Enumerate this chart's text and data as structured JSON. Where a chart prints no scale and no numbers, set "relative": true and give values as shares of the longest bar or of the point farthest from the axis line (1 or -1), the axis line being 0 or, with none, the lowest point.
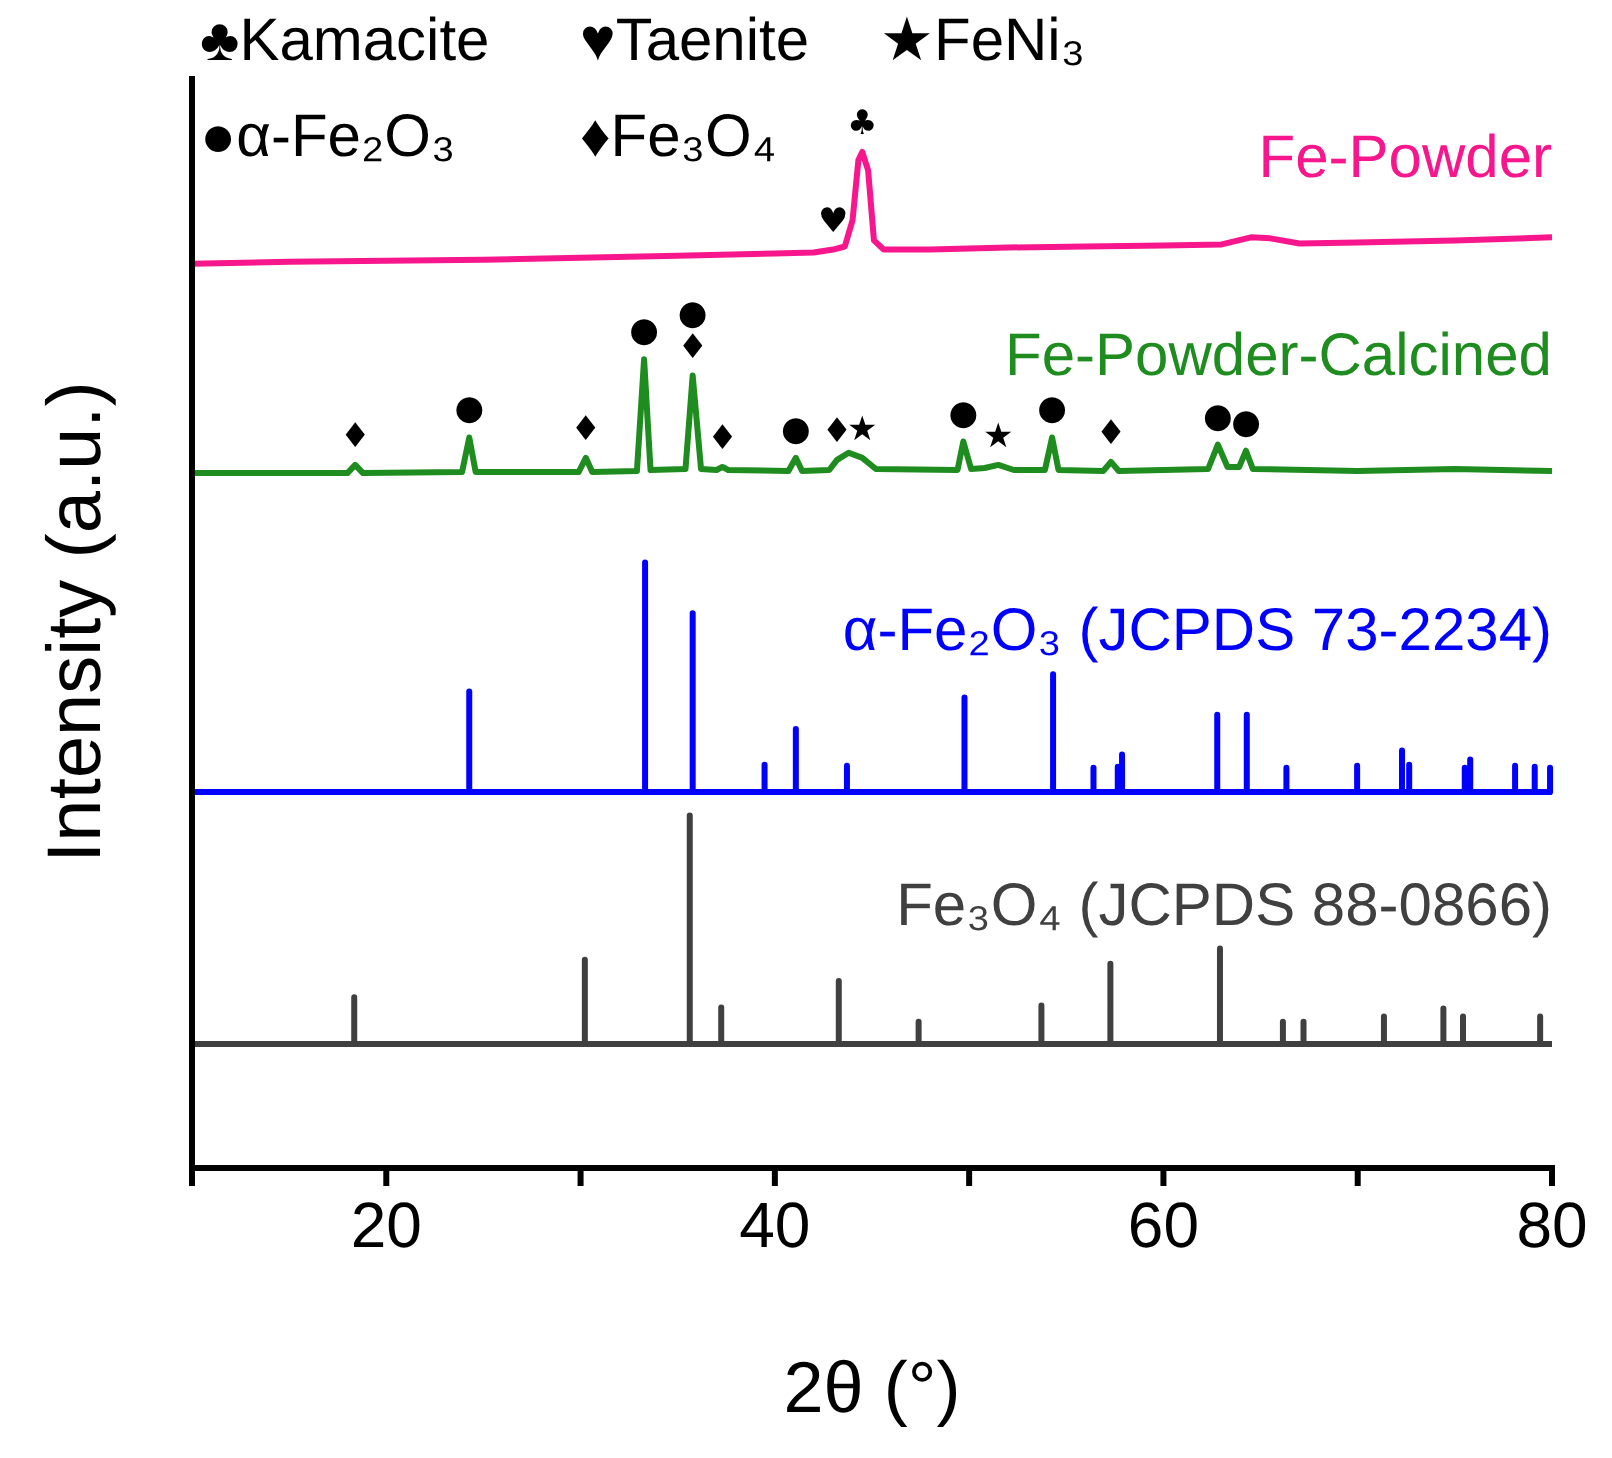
{
  "chart_data": {
    "type": "line",
    "relative": true,
    "xlabel": "2θ (°)",
    "ylabel": "Intensity (a.u.)",
    "xlim": [
      10,
      80
    ],
    "xticks": [
      {
        "value": 10,
        "label": null
      },
      20,
      {
        "value": 30,
        "label": null
      },
      40,
      {
        "value": 50,
        "label": null
      },
      60,
      {
        "value": 70,
        "label": null
      },
      80
    ],
    "series": [
      {
        "name": "Fe-Powder",
        "color": "#f7168c",
        "x": [
          10,
          15,
          20,
          25,
          30,
          35,
          40,
          42,
          43,
          43.6,
          44.0,
          44.3,
          44.5,
          44.8,
          45.1,
          45.6,
          48,
          52,
          56,
          60,
          63,
          64.5,
          65.5,
          67,
          70,
          75,
          80
        ],
        "values": [
          0.89,
          0.892,
          0.893,
          0.894,
          0.896,
          0.898,
          0.9,
          0.901,
          0.904,
          0.907,
          0.933,
          0.992,
          1.0,
          0.982,
          0.913,
          0.904,
          0.904,
          0.906,
          0.907,
          0.908,
          0.909,
          0.916,
          0.915,
          0.91,
          0.911,
          0.913,
          0.916
        ]
      },
      {
        "name": "Fe-Powder-Calcined",
        "color": "#1e8c1e",
        "x": [
          10,
          18.0,
          18.4,
          18.8,
          23.9,
          24.27,
          24.6,
          29.9,
          30.27,
          30.6,
          32.9,
          33.27,
          33.6,
          35.4,
          35.77,
          36.2,
          37.0,
          37.3,
          37.6,
          40.7,
          41.08,
          41.4,
          42.8,
          43.2,
          43.8,
          44.5,
          45.2,
          49.4,
          49.7,
          50.1,
          50.8,
          51.5,
          52.3,
          53.9,
          54.27,
          54.6,
          56.9,
          57.3,
          57.7,
          62.3,
          62.8,
          63.3,
          63.9,
          64.25,
          64.6,
          70,
          75,
          80
        ],
        "values": [
          0.684,
          0.684,
          0.692,
          0.684,
          0.685,
          0.719,
          0.685,
          0.685,
          0.699,
          0.685,
          0.686,
          0.796,
          0.687,
          0.688,
          0.78,
          0.688,
          0.687,
          0.69,
          0.687,
          0.686,
          0.699,
          0.686,
          0.687,
          0.697,
          0.704,
          0.699,
          0.688,
          0.687,
          0.715,
          0.688,
          0.689,
          0.692,
          0.687,
          0.687,
          0.719,
          0.687,
          0.686,
          0.695,
          0.686,
          0.688,
          0.712,
          0.69,
          0.69,
          0.706,
          0.688,
          0.686,
          0.688,
          0.686
        ]
      },
      {
        "name": "α-Fe₂O₃ (JCPDS 73-2234)",
        "color": "#0000ff",
        "x": [
          10,
          24.27,
          24.27,
          24.27,
          33.32,
          33.32,
          33.32,
          35.77,
          35.77,
          35.77,
          39.47,
          39.47,
          39.47,
          41.08,
          41.08,
          41.08,
          43.71,
          43.71,
          43.71,
          49.76,
          49.76,
          49.76,
          54.32,
          54.32,
          54.32,
          56.4,
          56.4,
          56.4,
          57.65,
          57.65,
          57.65,
          57.87,
          57.87,
          57.87,
          62.77,
          62.77,
          62.77,
          64.29,
          64.29,
          64.29,
          66.33,
          66.33,
          66.33,
          69.97,
          69.97,
          69.97,
          72.28,
          72.28,
          72.28,
          72.65,
          72.65,
          72.65,
          75.51,
          75.51,
          75.51,
          75.79,
          75.79,
          75.79,
          78.1,
          78.1,
          78.1,
          79.11,
          79.11,
          79.11,
          79.9,
          79.9,
          79.9,
          80
        ],
        "values": [
          0.37,
          0.37,
          0.469,
          0.37,
          0.37,
          0.596,
          0.37,
          0.37,
          0.546,
          0.37,
          0.37,
          0.397,
          0.37,
          0.37,
          0.432,
          0.37,
          0.37,
          0.396,
          0.37,
          0.37,
          0.463,
          0.37,
          0.37,
          0.486,
          0.37,
          0.37,
          0.394,
          0.37,
          0.37,
          0.395,
          0.37,
          0.37,
          0.407,
          0.37,
          0.37,
          0.446,
          0.37,
          0.37,
          0.446,
          0.37,
          0.37,
          0.394,
          0.37,
          0.37,
          0.396,
          0.37,
          0.37,
          0.411,
          0.37,
          0.37,
          0.397,
          0.37,
          0.37,
          0.394,
          0.37,
          0.37,
          0.402,
          0.37,
          0.37,
          0.396,
          0.37,
          0.37,
          0.395,
          0.37,
          0.37,
          0.394,
          0.37,
          0.37
        ]
      },
      {
        "name": "Fe₃O₄ (JCPDS 88-0866)",
        "color": "#404040",
        "x": [
          10,
          18.35,
          18.35,
          18.35,
          30.22,
          30.22,
          30.22,
          35.62,
          35.62,
          35.62,
          37.24,
          37.24,
          37.24,
          43.29,
          43.29,
          43.29,
          47.4,
          47.4,
          47.4,
          53.72,
          53.72,
          53.72,
          57.27,
          57.27,
          57.27,
          62.91,
          62.91,
          62.91,
          66.15,
          66.15,
          66.15,
          67.21,
          67.21,
          67.21,
          71.35,
          71.35,
          71.35,
          74.41,
          74.41,
          74.41,
          75.42,
          75.42,
          75.42,
          79.39,
          79.39,
          79.39,
          80
        ],
        "values": [
          0.122,
          0.122,
          0.168,
          0.122,
          0.122,
          0.205,
          0.122,
          0.122,
          0.347,
          0.122,
          0.122,
          0.158,
          0.122,
          0.122,
          0.184,
          0.122,
          0.122,
          0.144,
          0.122,
          0.122,
          0.16,
          0.122,
          0.122,
          0.201,
          0.122,
          0.122,
          0.216,
          0.122,
          0.122,
          0.144,
          0.122,
          0.122,
          0.144,
          0.122,
          0.122,
          0.149,
          0.122,
          0.122,
          0.157,
          0.122,
          0.122,
          0.149,
          0.122,
          0.122,
          0.149,
          0.122,
          0.122
        ]
      }
    ],
    "annotations": [
      "♣Kamacite",
      "♥Taenite",
      "★FeNi₃",
      "●α-Fe₂O₃",
      "♦Fe₃O₄",
      {
        "text": "♣",
        "x": 44.5,
        "y": 1.0
      },
      {
        "text": "♥",
        "x": 43,
        "y": 0.904
      },
      {
        "text": "♦",
        "x": 18.4,
        "y": 0.692
      },
      {
        "text": "●",
        "x": 24.27,
        "y": 0.719
      },
      {
        "text": "♦",
        "x": 30.27,
        "y": 0.699
      },
      {
        "text": "●",
        "x": 33.27,
        "y": 0.796
      },
      {
        "text": "♦",
        "x": 35.77,
        "y": 0.78
      },
      {
        "text": "●",
        "x": 35.77,
        "y": 0.78
      },
      {
        "text": "♦",
        "x": 37.3,
        "y": 0.69
      },
      {
        "text": "●",
        "x": 41.08,
        "y": 0.699
      },
      {
        "text": "♦",
        "x": 43.2,
        "y": 0.697
      },
      {
        "text": "★",
        "x": 44.5,
        "y": 0.699
      },
      {
        "text": "●",
        "x": 49.7,
        "y": 0.715
      },
      {
        "text": "★",
        "x": 51.5,
        "y": 0.692
      },
      {
        "text": "●",
        "x": 54.27,
        "y": 0.719
      },
      {
        "text": "♦",
        "x": 57.3,
        "y": 0.695
      },
      {
        "text": "●",
        "x": 62.8,
        "y": 0.712
      },
      {
        "text": "●",
        "x": 64.25,
        "y": 0.706
      }
    ]
  }
}
